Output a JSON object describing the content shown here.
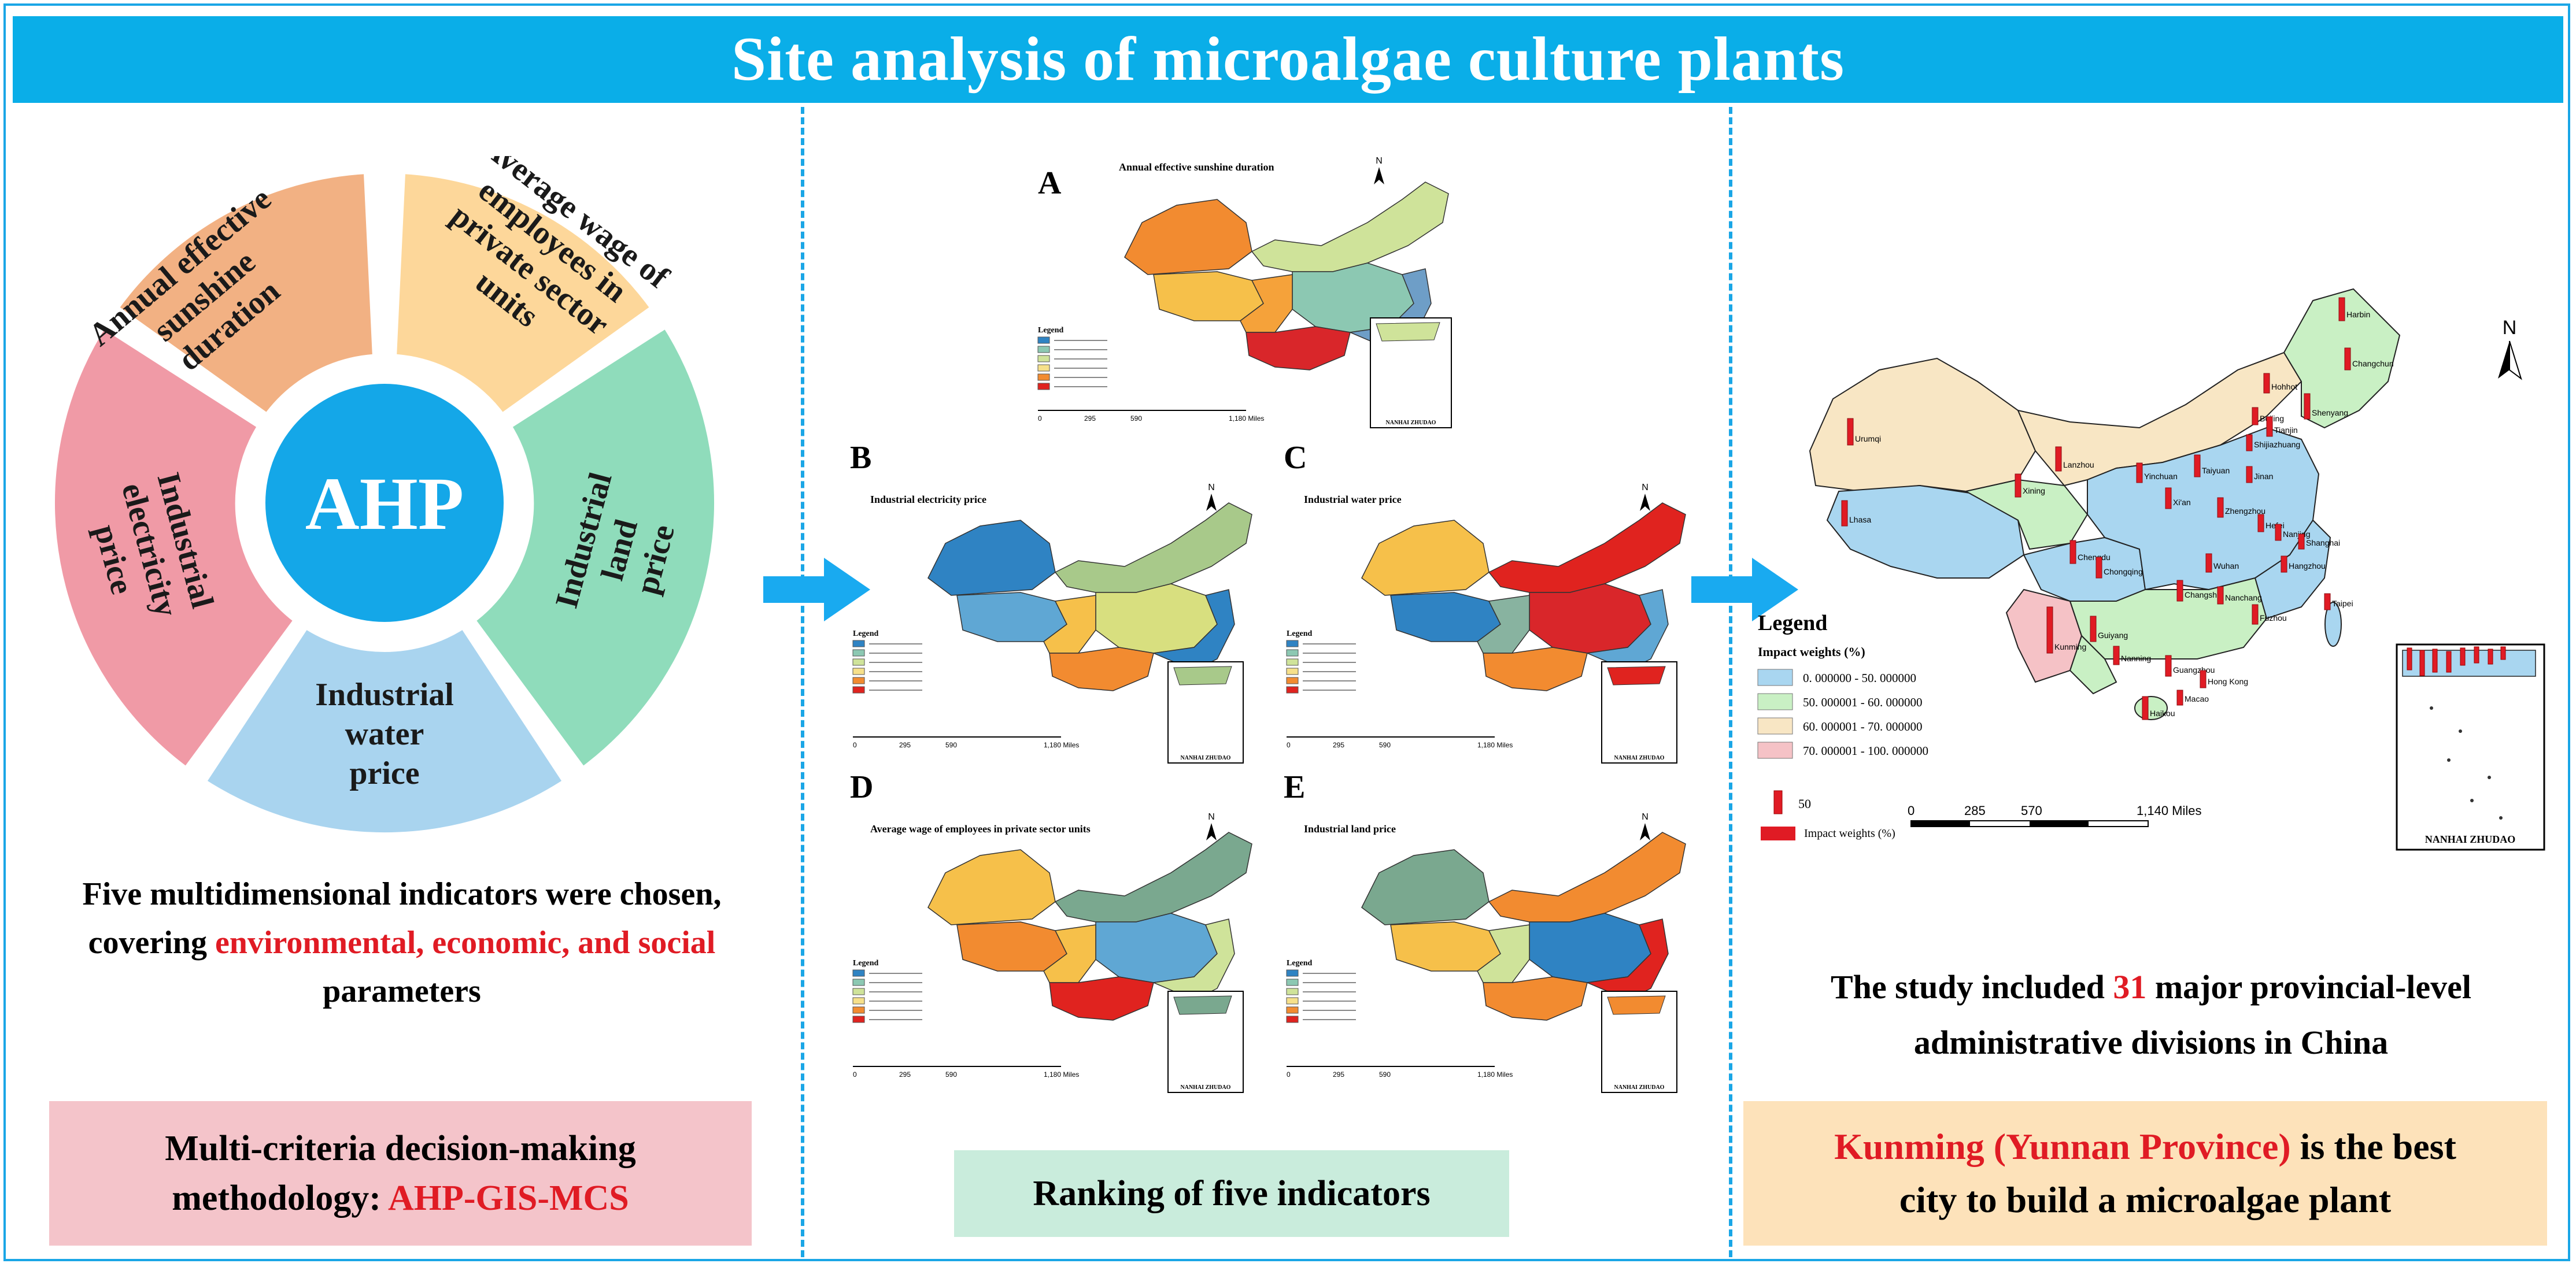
{
  "title": "Site analysis of microalgae culture plants",
  "colors": {
    "banner": "#0aaee8",
    "sunshine": "#f2b183",
    "wage": "#fdd79a",
    "land": "#8fdcbb",
    "water": "#a9d4ef",
    "electricity": "#f09aa6",
    "ahp_center": "#14a7e8",
    "highlight": "#e01b24"
  },
  "left": {
    "center_label": "AHP",
    "segments": {
      "sunshine": "Annual effective sunshine duration",
      "wage": "Average wage of employees in private sector units",
      "land": "Industrial land price",
      "water": "Industrial water price",
      "electricity": "Industrial electricity price"
    },
    "caption": {
      "line1": "Five multidimensional indicators were chosen,",
      "line2_pre": "covering ",
      "line2_red": "environmental, economic, and social",
      "line3": "parameters"
    },
    "method_box": {
      "line1": "Multi-criteria decision-making",
      "line2_pre": "methodology: ",
      "line2_red": "AHP-GIS-MCS"
    }
  },
  "middle": {
    "maps": [
      {
        "letter": "A",
        "title": "Annual effective sunshine duration"
      },
      {
        "letter": "B",
        "title": "Industrial electricity price"
      },
      {
        "letter": "C",
        "title": "Industrial water price"
      },
      {
        "letter": "D",
        "title": "Average wage of employees in private sector units"
      },
      {
        "letter": "E",
        "title": "Industrial land price"
      }
    ],
    "map_text": {
      "legend": "Legend",
      "north": "N",
      "scale": [
        "0",
        "295",
        "590",
        "1,180 Miles"
      ],
      "inset": "NANHAI ZHUDAO"
    },
    "box_label": "Ranking of five indicators"
  },
  "right": {
    "legend_title": "Legend",
    "legend_subtitle": "Impact weights (%)",
    "legend_items": [
      {
        "label": "0. 000000 - 50. 000000",
        "color": "#a9d6f0"
      },
      {
        "label": "50. 000001 - 60. 000000",
        "color": "#c9f0c4"
      },
      {
        "label": "60. 000001 - 70. 000000",
        "color": "#f8e6c4"
      },
      {
        "label": "70. 000001 - 100. 000000",
        "color": "#f5c2c6"
      }
    ],
    "bar_value": "50",
    "bar_label": "Impact weights (%)",
    "scale": [
      "0",
      "285",
      "570",
      "1,140 Miles"
    ],
    "north": "N",
    "inset": "NANHAI ZHUDAO",
    "cities": [
      "Urumqi",
      "Harbin",
      "Changchun",
      "Hohhot",
      "Shenyang",
      "Beijing",
      "Tianjin",
      "Lanzhou",
      "Shijiazhuang",
      "Yinchuan",
      "Taiyuan",
      "Jinan",
      "Xining",
      "Xi'an",
      "Zhengzhou",
      "Lhasa",
      "Hefei",
      "Nanjing",
      "Shanghai",
      "Chengdu",
      "Chongqing",
      "Wuhan",
      "Hangzhou",
      "Changsha",
      "Nanchang",
      "Guiyang",
      "Fuzhou",
      "Kunming",
      "Nanning",
      "Guangzhou",
      "Taipei",
      "Haikou",
      "Hong Kong",
      "Macao"
    ],
    "caption": {
      "line1_pre": "The study included ",
      "line1_red": "31",
      "line1_post": " major provincial-level",
      "line2": "administrative divisions in China"
    },
    "result_box": {
      "line1_red": "Kunming (Yunnan Province)",
      "line1_post": " is the best",
      "line2": "city to build a microalgae plant"
    }
  }
}
